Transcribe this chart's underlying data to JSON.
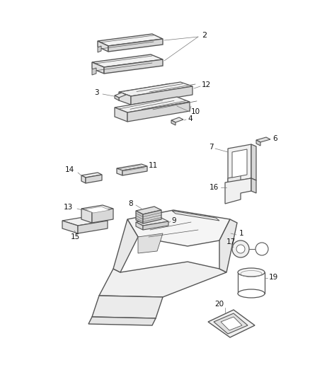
{
  "bg_color": "#ffffff",
  "line_color": "#555555",
  "label_color": "#111111",
  "figsize": [
    4.38,
    5.33
  ],
  "dpi": 100
}
